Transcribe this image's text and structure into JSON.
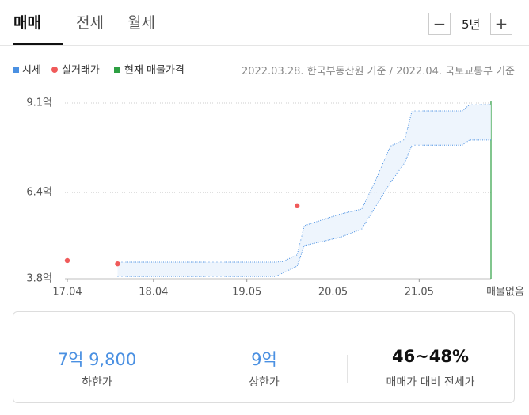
{
  "tabs": [
    "매매",
    "전세",
    "월세"
  ],
  "period": {
    "minus": "−",
    "label": "5년",
    "plus": "+"
  },
  "source_note": "2022.03.28. 한국부동산원 기준 / 2022.04. 국토교통부 기준",
  "chart_data": {
    "type": "band",
    "xlim": [
      "2017-04",
      "2022-03"
    ],
    "xticks": [
      {
        "value": "2017-04",
        "label": "17.04"
      },
      {
        "value": "2018-04",
        "label": "18.04"
      },
      {
        "value": "2019-05",
        "label": "19.05"
      },
      {
        "value": "2020-05",
        "label": "20.05"
      },
      {
        "value": "2021-05",
        "label": "21.05"
      }
    ],
    "ylim": [
      3.8,
      9.1
    ],
    "yticks": [
      {
        "value": 3.8,
        "label": "3.8억"
      },
      {
        "value": 6.4,
        "label": "6.4억"
      },
      {
        "value": 9.1,
        "label": "9.1억"
      }
    ],
    "grid": true,
    "series": [
      {
        "name": "시세",
        "color": "#4a90e2",
        "x": [
          "2017-11",
          "2019-09",
          "2019-10",
          "2019-12",
          "2020-01",
          "2020-06",
          "2020-09",
          "2020-11",
          "2021-01",
          "2021-03",
          "2021-04",
          "2021-11",
          "2021-12",
          "2022-03"
        ],
        "lower": [
          3.87,
          3.87,
          3.97,
          4.18,
          4.8,
          5.05,
          5.3,
          6.0,
          6.7,
          7.3,
          7.83,
          7.83,
          7.98,
          7.98
        ],
        "upper": [
          4.3,
          4.3,
          4.32,
          4.52,
          5.4,
          5.75,
          5.9,
          6.8,
          7.8,
          8.0,
          8.86,
          8.86,
          9.05,
          9.05
        ]
      },
      {
        "name": "실거래가",
        "color": "#f05a5a",
        "x": [
          "2017-04",
          "2017-11",
          "2019-12"
        ],
        "values": [
          4.35,
          4.25,
          6.0
        ]
      }
    ],
    "listing": {
      "name": "현재 매물가격",
      "color": "#2ea043",
      "label": "매물없음"
    }
  },
  "summary": [
    {
      "value": "7억 9,800",
      "label": "하한가"
    },
    {
      "value": "9억",
      "label": "상한가"
    },
    {
      "value": "46~48%",
      "label": "매매가 대비 전세가"
    }
  ]
}
